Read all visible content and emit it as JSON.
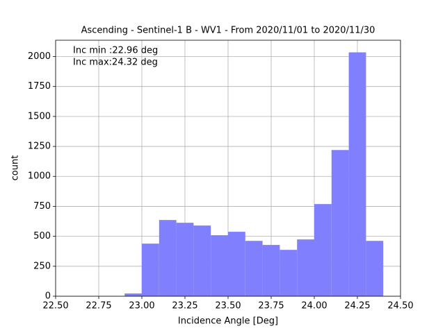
{
  "chart_data": {
    "type": "histogram",
    "title": "Ascending - Sentinel-1 B - WV1 - From 2020/11/01 to 2020/11/30",
    "xlabel": "Incidence Angle [Deg]",
    "ylabel": "count",
    "annotations": [
      "Inc min :22.96 deg",
      "Inc max:24.32 deg"
    ],
    "bins": [
      22.9,
      23.0,
      23.1,
      23.2,
      23.3,
      23.4,
      23.5,
      23.6,
      23.7,
      23.8,
      23.9,
      24.0,
      24.1,
      24.2,
      24.3,
      24.4
    ],
    "values": [
      23,
      439,
      636,
      613,
      590,
      509,
      538,
      462,
      428,
      387,
      474,
      769,
      1220,
      2035,
      462
    ],
    "color": "#8080ff",
    "xlim": [
      22.5,
      24.5
    ],
    "xticks": [
      {
        "value": 22.5,
        "label": "22.50"
      },
      {
        "value": 22.75,
        "label": "22.75"
      },
      {
        "value": 23,
        "label": "23.00"
      },
      {
        "value": 23.25,
        "label": "23.25"
      },
      {
        "value": 23.5,
        "label": "23.50"
      },
      {
        "value": 23.75,
        "label": "23.75"
      },
      {
        "value": 24,
        "label": "24.00"
      },
      {
        "value": 24.25,
        "label": "24.25"
      },
      {
        "value": 24.5,
        "label": "24.50"
      }
    ],
    "ylim": [
      0,
      2136
    ],
    "yticks": [
      0,
      250,
      500,
      750,
      1000,
      1250,
      1500,
      1750,
      2000
    ],
    "grid": true
  }
}
